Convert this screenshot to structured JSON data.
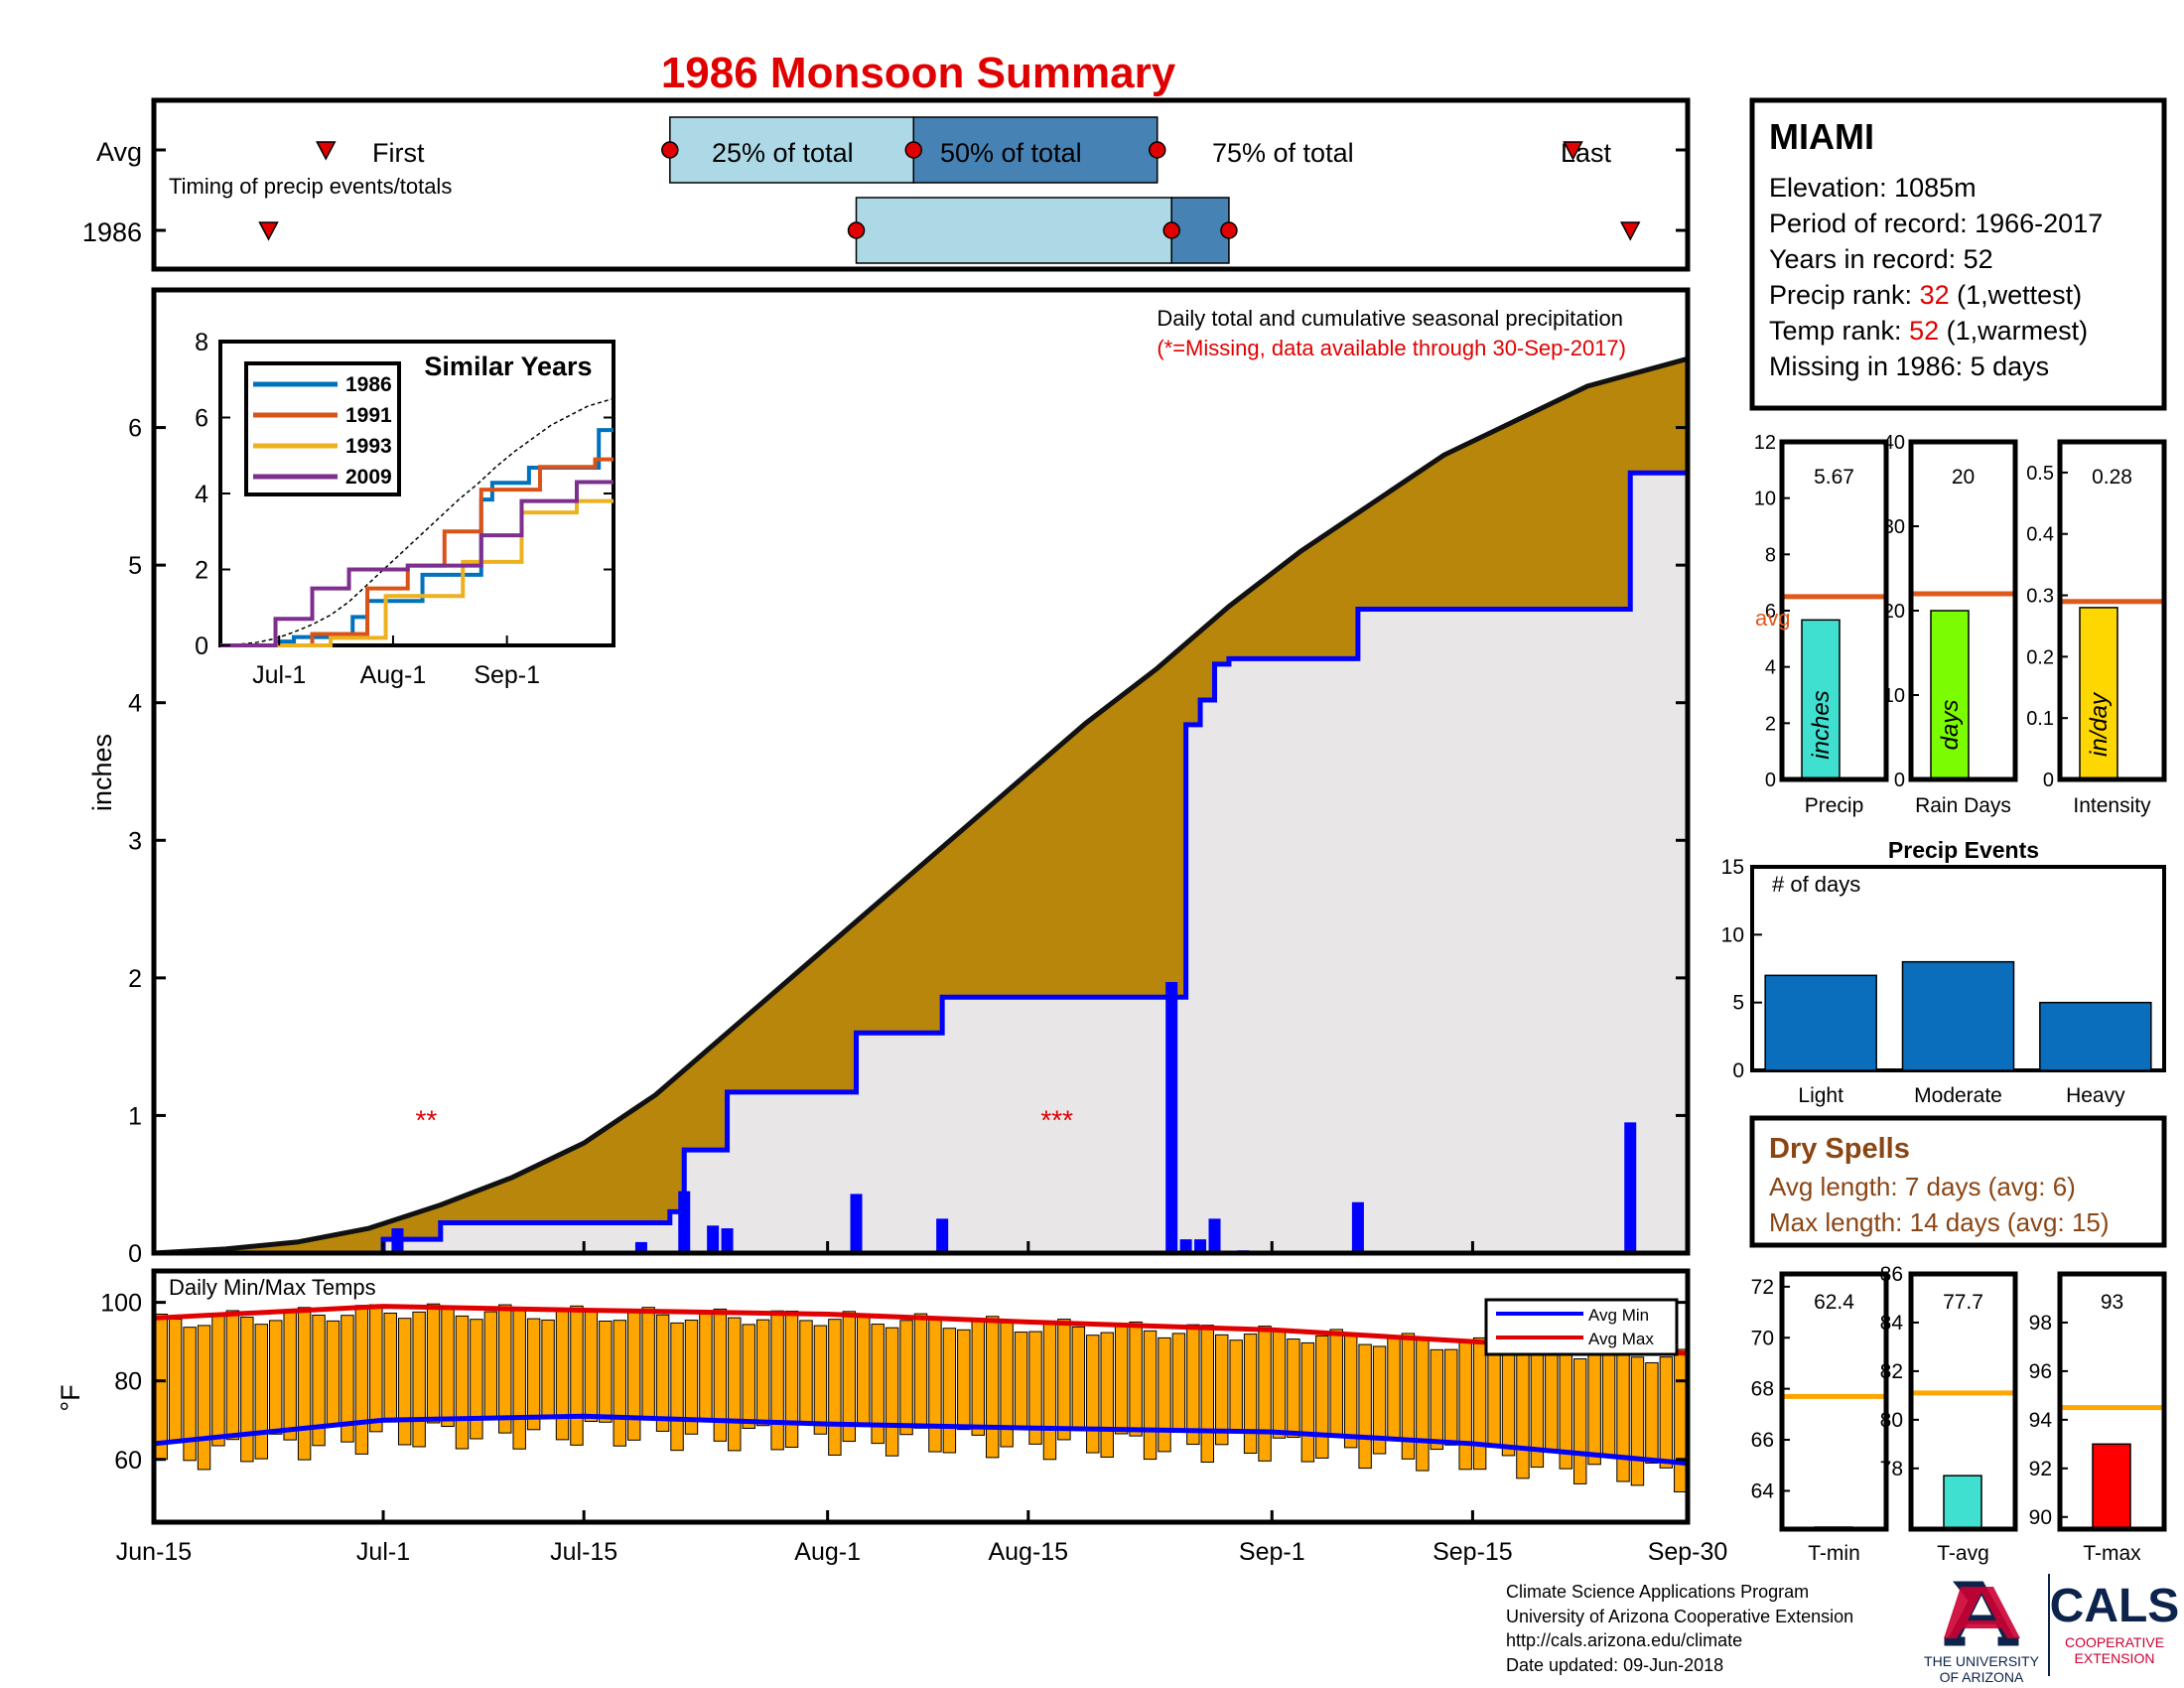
{
  "title": "1986 Monsoon Summary",
  "timing": {
    "row_avg_label": "Avg",
    "row_year_label": "1986",
    "note": "Timing of precip events/totals",
    "first_label": "First",
    "last_label": "Last",
    "q25_label": "25% of total",
    "q50_label": "50% of total",
    "q75_label": "75% of total",
    "avg": {
      "first": "2024-06-27",
      "q25": "2024-07-21",
      "q50": "2024-08-07",
      "q75": "2024-08-24",
      "last": "2024-09-22"
    },
    "year": {
      "first": "2024-06-23",
      "q25": "2024-08-03",
      "q50": "2024-08-25",
      "q75": "2024-08-29",
      "last": "2024-09-26"
    }
  },
  "info": {
    "station": "MIAMI",
    "elevation": "Elevation: 1085m",
    "period": "Period of record: 1966-2017",
    "years": "Years in record: 52",
    "precip_rank_pre": "Precip rank: ",
    "precip_rank": "32",
    "precip_rank_post": " (1,wettest)",
    "temp_rank_pre": "Temp rank: ",
    "temp_rank": "52",
    "temp_rank_post": " (1,warmest)",
    "missing": "Missing in 1986: 5 days"
  },
  "main": {
    "caption1": "Daily total and cumulative seasonal precipitation",
    "caption2": "(*=Missing, data available through 30-Sep-2017)",
    "ylabel": "inches",
    "missing_marks": [
      {
        "date": "2024-07-04",
        "text": "**"
      },
      {
        "date": "2024-08-17",
        "text": "***"
      }
    ]
  },
  "inset": {
    "title": "Similar Years",
    "xticks": [
      "Jul-1",
      "Aug-1",
      "Sep-1"
    ],
    "legend": [
      "1986",
      "1991",
      "1993",
      "2009"
    ]
  },
  "temps": {
    "label": "Daily Min/Max Temps",
    "ylabel": "°F",
    "legend_min": "Avg Min",
    "legend_max": "Avg Max"
  },
  "x_ticks": [
    "Jun-15",
    "Jul-1",
    "Jul-15",
    "Aug-1",
    "Aug-15",
    "Sep-1",
    "Sep-15",
    "Sep-30"
  ],
  "small_bars": [
    {
      "xlabel": "Precip",
      "inner": "inches",
      "value": "5.67"
    },
    {
      "xlabel": "Rain Days",
      "inner": "days",
      "value": "20"
    },
    {
      "xlabel": "Intensity",
      "inner": "in/day",
      "value": "0.28"
    }
  ],
  "avg_label": "avg",
  "events": {
    "title": "Precip Events",
    "ylabel": "# of days"
  },
  "dry": {
    "title": "Dry Spells",
    "avg_line": "Avg length: 7 days (avg: 6)",
    "max_line": "Max length: 14 days (avg: 15)"
  },
  "temp_bars": [
    {
      "xlabel": "T-min",
      "value": "62.4"
    },
    {
      "xlabel": "T-avg",
      "value": "77.7"
    },
    {
      "xlabel": "T-max",
      "value": "93"
    }
  ],
  "footer": {
    "line1": "Climate Science Applications Program",
    "line2": "University of Arizona Cooperative Extension",
    "line3": "http://cals.arizona.edu/climate",
    "line4": " Date updated: 09-Jun-2018",
    "ua_line1": "THE UNIVERSITY",
    "ua_line2": "OF ARIZONA",
    "cals": "CALS",
    "coop1": "COOPERATIVE",
    "coop2": "EXTENSION"
  },
  "colors": {
    "accent_red": "#e00000",
    "brown_area": "#b8860b",
    "year_line": "#0000ff",
    "avg_line": "#e0581c",
    "temp_bar": "#ffa500",
    "light_blue": "#add8e6",
    "steel_blue": "#4682b4",
    "events_bar": "#0a6ebd"
  },
  "chart_data": [
    {
      "type": "area",
      "title": "Daily total and cumulative seasonal precipitation",
      "ylabel": "inches",
      "ylim": [
        0,
        7
      ],
      "xlim": [
        "2024-06-15",
        "2024-09-30"
      ],
      "series": [
        {
          "name": "Avg cumulative",
          "x": [
            "2024-06-15",
            "2024-06-20",
            "2024-06-25",
            "2024-06-30",
            "2024-07-05",
            "2024-07-10",
            "2024-07-15",
            "2024-07-20",
            "2024-07-25",
            "2024-07-30",
            "2024-08-04",
            "2024-08-09",
            "2024-08-14",
            "2024-08-19",
            "2024-08-24",
            "2024-08-29",
            "2024-09-03",
            "2024-09-08",
            "2024-09-13",
            "2024-09-18",
            "2024-09-23",
            "2024-09-30"
          ],
          "values": [
            0,
            0.03,
            0.08,
            0.18,
            0.35,
            0.55,
            0.8,
            1.15,
            1.6,
            2.05,
            2.5,
            2.95,
            3.4,
            3.85,
            4.25,
            4.7,
            5.1,
            5.45,
            5.8,
            6.05,
            6.3,
            6.5
          ]
        },
        {
          "name": "1986 cumulative",
          "x": [
            "2024-06-15",
            "2024-07-01",
            "2024-07-05",
            "2024-07-21",
            "2024-07-22",
            "2024-07-25",
            "2024-08-03",
            "2024-08-09",
            "2024-08-25",
            "2024-08-26",
            "2024-08-27",
            "2024-08-28",
            "2024-08-29",
            "2024-09-07",
            "2024-09-26",
            "2024-09-30"
          ],
          "values": [
            0,
            0.1,
            0.22,
            0.3,
            0.75,
            1.17,
            1.6,
            1.86,
            1.86,
            3.84,
            4.02,
            4.28,
            4.32,
            4.68,
            5.67,
            5.67
          ]
        },
        {
          "name": "1986 daily",
          "x": [
            "2024-07-02",
            "2024-07-02",
            "2024-07-19",
            "2024-07-22",
            "2024-07-24",
            "2024-07-25",
            "2024-08-03",
            "2024-08-09",
            "2024-08-25",
            "2024-08-26",
            "2024-08-27",
            "2024-08-28",
            "2024-08-30",
            "2024-09-07",
            "2024-09-26"
          ],
          "values": [
            0.18,
            0.17,
            0.08,
            0.45,
            0.2,
            0.18,
            0.43,
            0.25,
            1.97,
            0.1,
            0.1,
            0.25,
            0.02,
            0.37,
            0.95
          ]
        }
      ]
    },
    {
      "type": "line",
      "title": "Similar Years",
      "ylim": [
        0,
        8
      ],
      "xlim": [
        "2024-06-15",
        "2024-09-30"
      ],
      "series": [
        {
          "name": "1986",
          "x": [
            "2024-06-15",
            "2024-07-01",
            "2024-07-05",
            "2024-07-21",
            "2024-07-25",
            "2024-08-09",
            "2024-08-25",
            "2024-08-28",
            "2024-09-07",
            "2024-09-26",
            "2024-09-30"
          ],
          "values": [
            0,
            0.1,
            0.22,
            0.75,
            1.17,
            1.86,
            3.84,
            4.28,
            4.68,
            5.67,
            5.67
          ]
        },
        {
          "name": "1991",
          "x": [
            "2024-06-15",
            "2024-07-10",
            "2024-07-25",
            "2024-08-05",
            "2024-08-15",
            "2024-08-25",
            "2024-09-10",
            "2024-09-25",
            "2024-09-30"
          ],
          "values": [
            0,
            0.3,
            1.5,
            2.1,
            3.0,
            4.1,
            4.7,
            4.9,
            4.9
          ]
        },
        {
          "name": "1993",
          "x": [
            "2024-06-15",
            "2024-07-15",
            "2024-07-30",
            "2024-08-20",
            "2024-09-05",
            "2024-09-20",
            "2024-09-30"
          ],
          "values": [
            0,
            0.2,
            1.3,
            2.2,
            3.5,
            3.8,
            3.8
          ]
        },
        {
          "name": "2009",
          "x": [
            "2024-06-15",
            "2024-06-30",
            "2024-07-10",
            "2024-07-20",
            "2024-08-05",
            "2024-08-25",
            "2024-09-05",
            "2024-09-20",
            "2024-09-30"
          ],
          "values": [
            0,
            0.7,
            1.5,
            2.0,
            2.1,
            2.9,
            3.8,
            4.3,
            4.3
          ]
        }
      ]
    },
    {
      "type": "bar",
      "title": "Daily Min/Max Temps",
      "ylabel": "°F",
      "ylim": [
        44,
        108
      ],
      "series": [
        {
          "name": "Avg Min",
          "x": [
            "2024-06-15",
            "2024-07-01",
            "2024-07-15",
            "2024-08-01",
            "2024-08-15",
            "2024-09-01",
            "2024-09-15",
            "2024-09-30"
          ],
          "values": [
            64,
            70,
            71,
            69,
            68,
            67,
            64,
            59
          ]
        },
        {
          "name": "Avg Max",
          "x": [
            "2024-06-15",
            "2024-07-01",
            "2024-07-15",
            "2024-08-01",
            "2024-08-15",
            "2024-09-01",
            "2024-09-15",
            "2024-09-30"
          ],
          "values": [
            96,
            99,
            98,
            97,
            95,
            93,
            90,
            87
          ]
        }
      ]
    },
    {
      "type": "bar",
      "categories": [
        "Precip"
      ],
      "values": [
        5.67
      ],
      "avg": 6.5,
      "ylim": [
        0,
        12
      ]
    },
    {
      "type": "bar",
      "categories": [
        "Rain Days"
      ],
      "values": [
        20
      ],
      "avg": 22,
      "ylim": [
        0,
        40
      ]
    },
    {
      "type": "bar",
      "categories": [
        "Intensity"
      ],
      "values": [
        0.28
      ],
      "avg": 0.29,
      "ylim": [
        0,
        0.55
      ]
    },
    {
      "type": "bar",
      "title": "Precip Events",
      "ylabel": "# of days",
      "categories": [
        "Light",
        "Moderate",
        "Heavy"
      ],
      "values": [
        7,
        8,
        5
      ],
      "ylim": [
        0,
        15
      ]
    },
    {
      "type": "bar",
      "categories": [
        "T-min"
      ],
      "values": [
        62.4
      ],
      "avg": 67.7,
      "ylim": [
        62.5,
        72.5
      ]
    },
    {
      "type": "bar",
      "categories": [
        "T-avg"
      ],
      "values": [
        77.7
      ],
      "avg": 81.1,
      "ylim": [
        75.5,
        86
      ]
    },
    {
      "type": "bar",
      "categories": [
        "T-max"
      ],
      "values": [
        93
      ],
      "avg": 94.5,
      "ylim": [
        89.5,
        100
      ]
    }
  ]
}
